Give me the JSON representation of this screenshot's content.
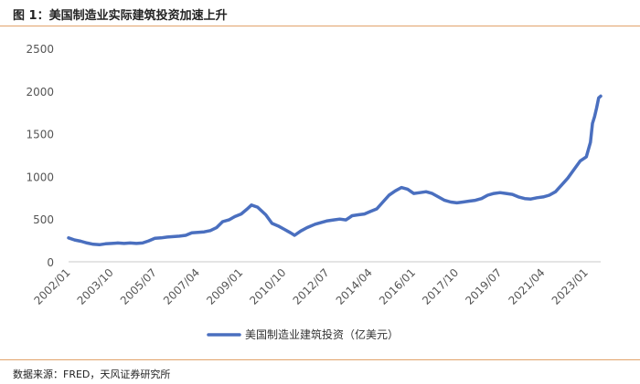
{
  "figure": {
    "title": "图 1：美国制造业实际建筑投资加速上升",
    "source": "数据来源：FRED，天风证券研究所"
  },
  "chart_data": {
    "type": "line",
    "ylim": [
      0,
      2500
    ],
    "yticks": [
      0,
      500,
      1000,
      1500,
      2000,
      2500
    ],
    "xlim": [
      "2002/01",
      "2023/08"
    ],
    "xticks": [
      "2002/01",
      "2003/10",
      "2005/07",
      "2007/04",
      "2009/01",
      "2010/10",
      "2012/07",
      "2014/04",
      "2016/01",
      "2017/10",
      "2019/07",
      "2021/04",
      "2023/01"
    ],
    "grid": false,
    "legend_position": "bottom",
    "color": "#4a6fbf",
    "series": [
      {
        "name": "美国制造业建筑投资（亿美元）",
        "points": [
          [
            "2002/01",
            280
          ],
          [
            "2002/04",
            255
          ],
          [
            "2002/07",
            240
          ],
          [
            "2002/10",
            220
          ],
          [
            "2003/01",
            205
          ],
          [
            "2003/04",
            200
          ],
          [
            "2003/07",
            210
          ],
          [
            "2003/10",
            215
          ],
          [
            "2004/01",
            220
          ],
          [
            "2004/04",
            215
          ],
          [
            "2004/07",
            220
          ],
          [
            "2004/10",
            215
          ],
          [
            "2005/01",
            220
          ],
          [
            "2005/04",
            245
          ],
          [
            "2005/07",
            275
          ],
          [
            "2005/10",
            280
          ],
          [
            "2006/01",
            290
          ],
          [
            "2006/04",
            295
          ],
          [
            "2006/07",
            300
          ],
          [
            "2006/10",
            310
          ],
          [
            "2007/01",
            340
          ],
          [
            "2007/04",
            345
          ],
          [
            "2007/07",
            350
          ],
          [
            "2007/10",
            365
          ],
          [
            "2008/01",
            400
          ],
          [
            "2008/04",
            470
          ],
          [
            "2008/07",
            490
          ],
          [
            "2008/10",
            530
          ],
          [
            "2009/01",
            560
          ],
          [
            "2009/04",
            620
          ],
          [
            "2009/06",
            665
          ],
          [
            "2009/09",
            640
          ],
          [
            "2010/01",
            550
          ],
          [
            "2010/04",
            450
          ],
          [
            "2010/07",
            420
          ],
          [
            "2010/10",
            380
          ],
          [
            "2011/01",
            340
          ],
          [
            "2011/03",
            310
          ],
          [
            "2011/06",
            360
          ],
          [
            "2011/09",
            400
          ],
          [
            "2012/01",
            440
          ],
          [
            "2012/04",
            460
          ],
          [
            "2012/07",
            480
          ],
          [
            "2012/10",
            490
          ],
          [
            "2013/01",
            500
          ],
          [
            "2013/04",
            490
          ],
          [
            "2013/07",
            540
          ],
          [
            "2013/10",
            550
          ],
          [
            "2014/01",
            560
          ],
          [
            "2014/04",
            590
          ],
          [
            "2014/07",
            620
          ],
          [
            "2014/10",
            700
          ],
          [
            "2015/01",
            780
          ],
          [
            "2015/04",
            830
          ],
          [
            "2015/07",
            870
          ],
          [
            "2015/10",
            850
          ],
          [
            "2016/01",
            800
          ],
          [
            "2016/04",
            810
          ],
          [
            "2016/07",
            820
          ],
          [
            "2016/10",
            800
          ],
          [
            "2017/01",
            760
          ],
          [
            "2017/04",
            720
          ],
          [
            "2017/07",
            700
          ],
          [
            "2017/10",
            690
          ],
          [
            "2018/01",
            700
          ],
          [
            "2018/04",
            710
          ],
          [
            "2018/07",
            720
          ],
          [
            "2018/10",
            740
          ],
          [
            "2019/01",
            780
          ],
          [
            "2019/04",
            800
          ],
          [
            "2019/07",
            810
          ],
          [
            "2019/10",
            800
          ],
          [
            "2020/01",
            790
          ],
          [
            "2020/04",
            760
          ],
          [
            "2020/07",
            740
          ],
          [
            "2020/10",
            735
          ],
          [
            "2021/01",
            750
          ],
          [
            "2021/04",
            760
          ],
          [
            "2021/07",
            780
          ],
          [
            "2021/10",
            820
          ],
          [
            "2022/01",
            900
          ],
          [
            "2022/04",
            980
          ],
          [
            "2022/07",
            1080
          ],
          [
            "2022/10",
            1180
          ],
          [
            "2023/01",
            1230
          ],
          [
            "2023/03",
            1400
          ],
          [
            "2023/04",
            1620
          ],
          [
            "2023/05",
            1700
          ],
          [
            "2023/06",
            1800
          ],
          [
            "2023/07",
            1920
          ],
          [
            "2023/08",
            1940
          ]
        ]
      }
    ]
  }
}
